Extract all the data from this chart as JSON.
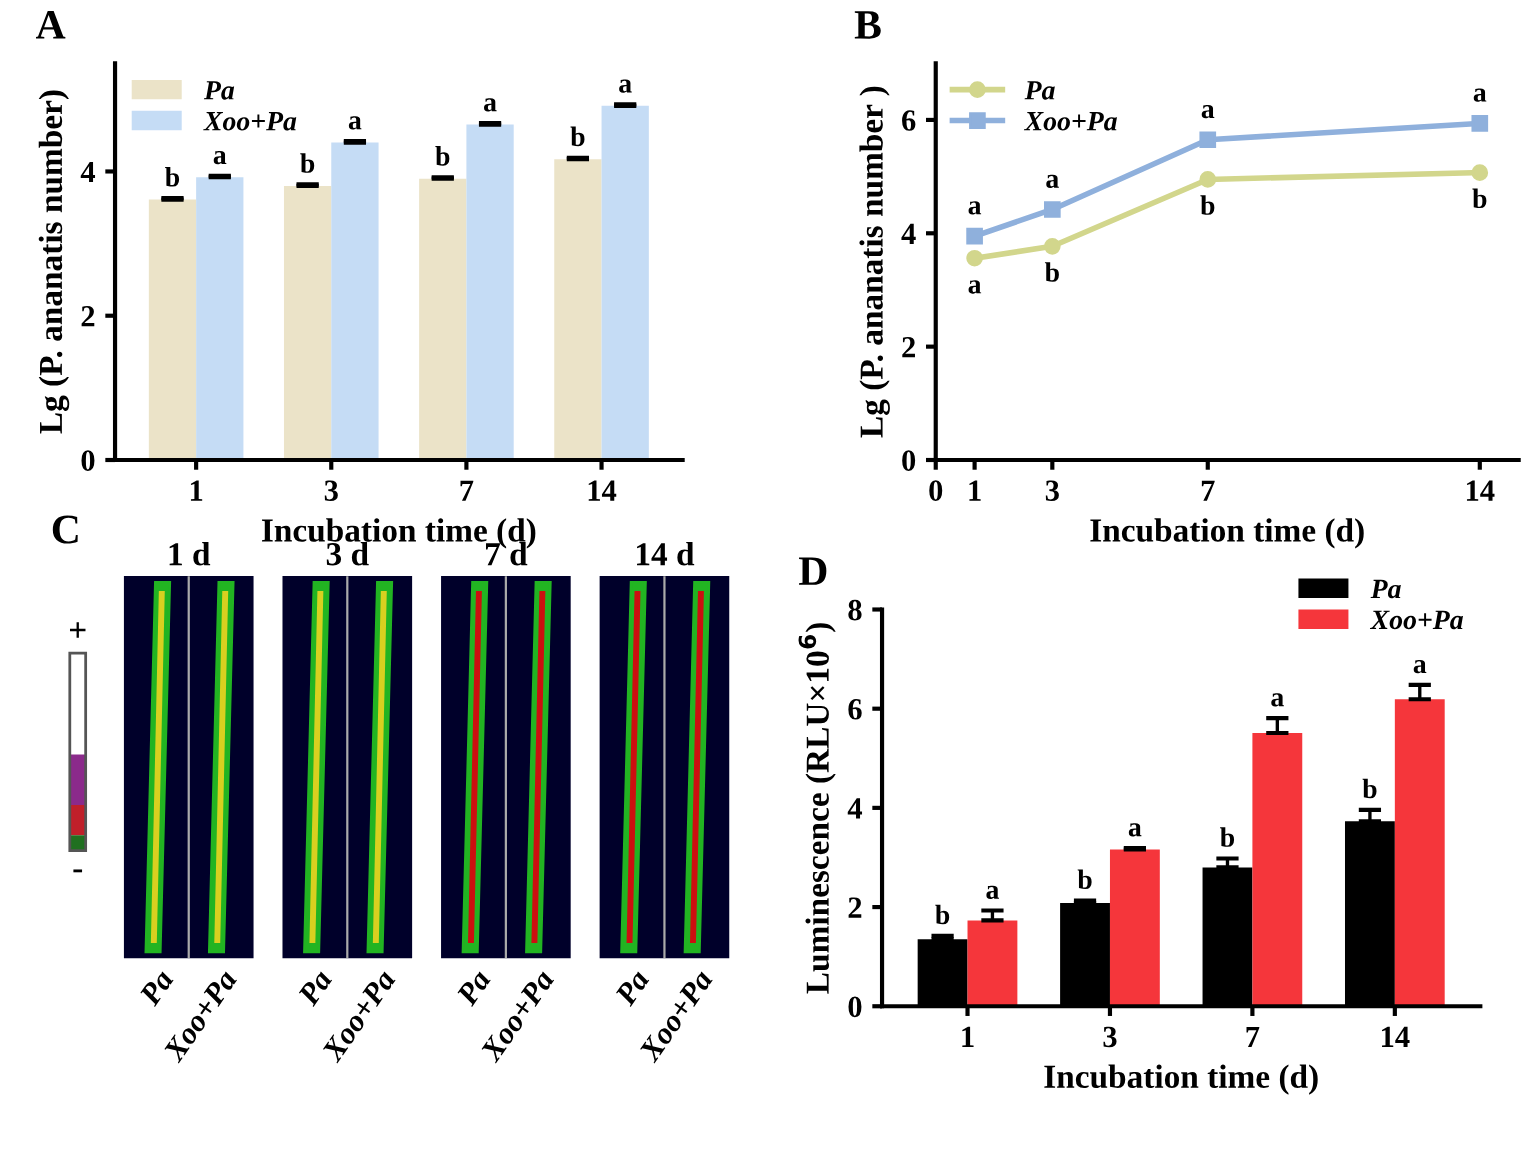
{
  "chart_data": [
    {
      "type": "bar",
      "title": "A",
      "ylabel": "Lg (P. ananatis number)",
      "xlabel": "Incubation time (d)",
      "categories": [
        "1",
        "3",
        "7",
        "14"
      ],
      "ylim": [
        0,
        5.5
      ],
      "yticks": [
        0,
        2,
        4
      ],
      "legend": "top left",
      "grid": false,
      "series": [
        {
          "name": "Pa",
          "color": "#ebe3c8",
          "values": [
            3.61,
            3.8,
            3.9,
            4.17
          ],
          "errors": [
            0.02,
            0.02,
            0.02,
            0.02
          ],
          "value_labels": [
            "b",
            "b",
            "b",
            "b"
          ]
        },
        {
          "name": "Xoo+Pa",
          "color": "#c5dcf5",
          "values": [
            3.92,
            4.4,
            4.65,
            4.91
          ],
          "errors": [
            0.02,
            0.02,
            0.02,
            0.02
          ],
          "value_labels": [
            "a",
            "a",
            "a",
            "a"
          ]
        }
      ]
    },
    {
      "type": "line",
      "title": "B",
      "ylabel": "Lg (P. ananatis number )",
      "xlabel": "Incubation time (d)",
      "x": [
        1,
        3,
        7,
        14
      ],
      "xlim": [
        0,
        15
      ],
      "xticks": [
        0,
        1,
        3,
        7,
        14
      ],
      "ylim": [
        0,
        7
      ],
      "yticks": [
        0,
        2,
        4,
        6
      ],
      "legend": "top left",
      "grid": false,
      "marker": "circle",
      "line_style": "solid",
      "series": [
        {
          "name": "Pa",
          "color": "#d2d68c",
          "values": [
            3.56,
            3.77,
            4.95,
            5.07
          ],
          "value_labels": [
            "a",
            "b",
            "b",
            "b"
          ]
        },
        {
          "name": "Xoo+Pa",
          "color": "#8fb0dc",
          "marker": "square",
          "values": [
            3.95,
            4.42,
            5.65,
            5.94
          ],
          "value_labels": [
            "a",
            "a",
            "a",
            "a"
          ]
        }
      ]
    },
    {
      "type": "other",
      "title": "C",
      "categories": [
        "1 d",
        "3 d",
        "7 d",
        "14 d"
      ],
      "annotations": [
        "Pa",
        "Xoo+Pa",
        "Pa",
        "Xoo+Pa",
        "Pa",
        "Xoo+Pa",
        "Pa",
        "Xoo+Pa",
        "+",
        "-"
      ]
    },
    {
      "type": "bar",
      "title": "D",
      "ylabel": "Luminescence (RLU×10$^{6}$)",
      "xlabel": "Incubation time (d)",
      "categories": [
        "1",
        "3",
        "7",
        "14"
      ],
      "ylim": [
        0,
        8
      ],
      "yticks": [
        0,
        2,
        4,
        6,
        8
      ],
      "legend": "top right",
      "grid": false,
      "series": [
        {
          "name": "Pa",
          "color": "#000000",
          "values": [
            1.35,
            2.08,
            2.8,
            3.73
          ],
          "errors": [
            0.07,
            0.05,
            0.18,
            0.23
          ],
          "value_labels": [
            "b",
            "b",
            "b",
            "b"
          ]
        },
        {
          "name": "Xoo+Pa",
          "color": "#f5363b",
          "values": [
            1.73,
            3.16,
            5.51,
            6.19
          ],
          "errors": [
            0.2,
            0.03,
            0.3,
            0.29
          ],
          "value_labels": [
            "a",
            "a",
            "a",
            "a"
          ]
        }
      ]
    }
  ]
}
